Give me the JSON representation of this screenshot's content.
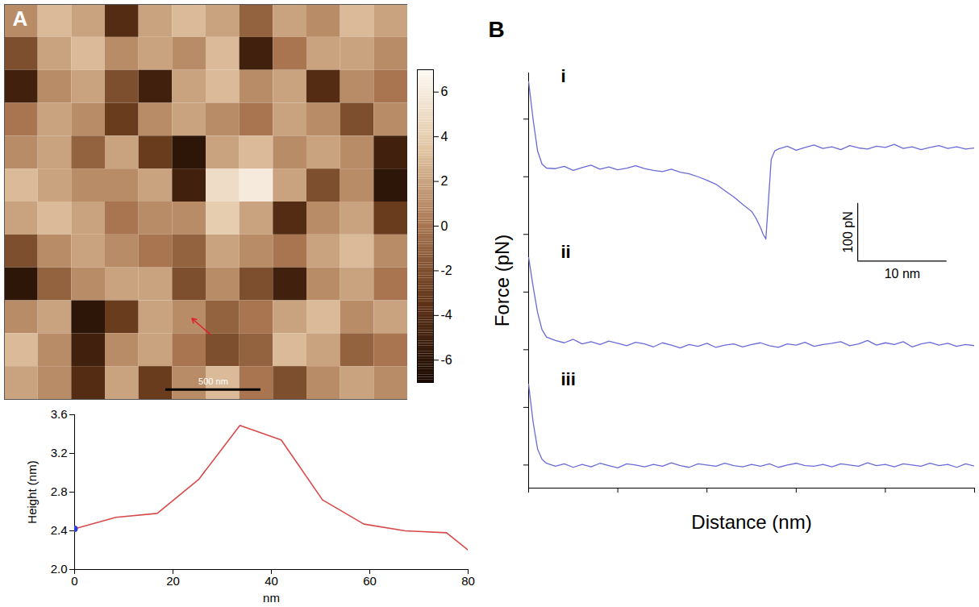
{
  "chart_data": [
    {
      "type": "heatmap",
      "panel_label": "A",
      "tick_labels": false,
      "xlim": [
        0,
        2120
      ],
      "ylim": [
        0,
        2100
      ],
      "cells": [
        [
          1,
          3,
          2,
          -4,
          2,
          3,
          2,
          -1,
          2,
          1,
          3,
          2
        ],
        [
          -2,
          2,
          3,
          1,
          2,
          1,
          3,
          -5,
          0,
          2,
          2,
          1
        ],
        [
          -5,
          1,
          2,
          -2,
          -5,
          2,
          3,
          1,
          2,
          -4,
          1,
          0
        ],
        [
          0,
          2,
          1,
          -3,
          1,
          2,
          1,
          0,
          2,
          1,
          -2,
          1
        ],
        [
          1,
          2,
          -1,
          2,
          -3,
          -6,
          2,
          3,
          1,
          2,
          1,
          -5
        ],
        [
          3,
          2,
          1,
          1,
          2,
          -5,
          5,
          6,
          2,
          -2,
          1,
          -6
        ],
        [
          2,
          3,
          2,
          0,
          1,
          1,
          4,
          2,
          -4,
          1,
          2,
          -3
        ],
        [
          -2,
          1,
          2,
          1,
          0,
          -1,
          2,
          1,
          0,
          2,
          3,
          1
        ],
        [
          -6,
          -1,
          1,
          2,
          2,
          -2,
          1,
          -2,
          -5,
          1,
          2,
          0
        ],
        [
          1,
          2,
          -6,
          -3,
          2,
          1,
          -1,
          0,
          2,
          3,
          1,
          2
        ],
        [
          3,
          1,
          -5,
          1,
          2,
          0,
          -2,
          -1,
          3,
          2,
          -1,
          0
        ],
        [
          2,
          1,
          -4,
          2,
          -3,
          1,
          3,
          0,
          -2,
          1,
          2,
          1
        ]
      ],
      "colorbar": {
        "lim": [
          -7,
          7
        ],
        "ticks": [
          6,
          4,
          2,
          0,
          -2,
          -4,
          -6
        ],
        "colors": [
          "#1a0902",
          "#5e3216",
          "#a87550",
          "#e2c6a4",
          "#fdf9f3"
        ]
      },
      "scale_bar": {
        "length": 500,
        "label": "500 nm"
      }
    },
    {
      "type": "line",
      "xlabel": "nm",
      "ylabel": "Height (nm)",
      "color": "#d84a4a",
      "x": [
        0,
        8.4,
        16.8,
        25.2,
        33.6,
        42,
        50.4,
        58.8,
        67.2,
        75.6,
        80
      ],
      "values": [
        2.42,
        2.54,
        2.58,
        2.93,
        3.49,
        3.34,
        2.72,
        2.47,
        2.4,
        2.38,
        2.2
      ],
      "marker_point": {
        "x": 0,
        "y": 2.42,
        "color": "#2a3fd6"
      },
      "xlim": [
        0,
        80
      ],
      "xticks": [
        0,
        20,
        40,
        60,
        80
      ],
      "ylim": [
        2.0,
        3.6
      ],
      "yticks": [
        {
          "value": 2.0,
          "label": "2.0"
        },
        2.4,
        2.8,
        3.2,
        3.6
      ]
    },
    {
      "type": "line",
      "panel_label": "B",
      "xlabel": "Distance (nm)",
      "ylabel": "Force (pN)",
      "tick_labels": false,
      "xlim": [
        0,
        50
      ],
      "xticks": [
        0,
        10,
        20,
        30,
        40,
        50
      ],
      "ylim": [
        -40,
        680
      ],
      "yticks": [
        0,
        100,
        200,
        300,
        400,
        500,
        600
      ],
      "series": [
        {
          "name": "i",
          "color": "#6a6ad8",
          "x": [
            0,
            0.5,
            1,
            1.5,
            2,
            3,
            4,
            5,
            6,
            7,
            8,
            9,
            10,
            11,
            12,
            13,
            14,
            15,
            16,
            17,
            18,
            19,
            20,
            21,
            22,
            23,
            24,
            25,
            25.5,
            26,
            26.3,
            26.6,
            26.9,
            27.2,
            27.6,
            28,
            29,
            30,
            31,
            32,
            33,
            34,
            35,
            36,
            37,
            38,
            39,
            40,
            41,
            42,
            43,
            44,
            45,
            46,
            47,
            48,
            49,
            50
          ],
          "values": [
            665,
            600,
            545,
            522,
            515,
            514,
            518,
            511,
            516,
            520,
            513,
            517,
            512,
            515,
            519,
            514,
            511,
            509,
            513,
            508,
            505,
            500,
            494,
            487,
            476,
            465,
            452,
            440,
            428,
            412,
            400,
            392,
            460,
            530,
            545,
            548,
            553,
            546,
            551,
            555,
            549,
            552,
            547,
            554,
            550,
            548,
            553,
            551,
            556,
            549,
            552,
            547,
            551,
            554,
            549,
            552,
            548,
            550
          ]
        },
        {
          "name": "ii",
          "color": "#6a6ad8",
          "x": [
            0,
            0.5,
            1,
            1.5,
            2,
            3,
            4,
            5,
            6,
            7,
            8,
            9,
            10,
            11,
            12,
            13,
            14,
            15,
            16,
            17,
            18,
            19,
            20,
            21,
            22,
            23,
            24,
            25,
            26,
            27,
            28,
            29,
            30,
            31,
            32,
            33,
            34,
            35,
            36,
            37,
            38,
            39,
            40,
            41,
            42,
            43,
            44,
            45,
            46,
            47,
            48,
            49,
            50
          ],
          "values": [
            360,
            310,
            265,
            235,
            222,
            216,
            212,
            218,
            210,
            214,
            209,
            215,
            211,
            207,
            213,
            210,
            205,
            212,
            208,
            203,
            209,
            206,
            211,
            204,
            208,
            210,
            205,
            209,
            212,
            207,
            204,
            210,
            208,
            213,
            206,
            209,
            211,
            214,
            207,
            210,
            216,
            208,
            212,
            209,
            214,
            205,
            210,
            213,
            208,
            211,
            206,
            209,
            207
          ]
        },
        {
          "name": "iii",
          "color": "#6a6ad8",
          "x": [
            0,
            0.5,
            1,
            1.5,
            2,
            3,
            4,
            5,
            6,
            7,
            8,
            9,
            10,
            11,
            12,
            13,
            14,
            15,
            16,
            17,
            18,
            19,
            20,
            21,
            22,
            23,
            24,
            25,
            26,
            27,
            28,
            29,
            30,
            31,
            32,
            33,
            34,
            35,
            36,
            37,
            38,
            39,
            40,
            41,
            42,
            43,
            44,
            45,
            46,
            47,
            48,
            49,
            50
          ],
          "values": [
            140,
            75,
            28,
            10,
            3,
            -2,
            2,
            -4,
            1,
            -3,
            3,
            -1,
            -5,
            2,
            0,
            -3,
            1,
            -2,
            4,
            -1,
            -4,
            2,
            0,
            -2,
            3,
            -1,
            -3,
            1,
            -2,
            2,
            -4,
            0,
            3,
            -1,
            -2,
            1,
            -3,
            2,
            0,
            -2,
            4,
            -1,
            1,
            -3,
            2,
            0,
            -2,
            3,
            -1,
            1,
            -4,
            2,
            -2
          ]
        }
      ],
      "scale_bar": {
        "x_length": 10,
        "x_label": "10 nm",
        "y_length": 100,
        "y_label": "100 pN"
      }
    }
  ]
}
